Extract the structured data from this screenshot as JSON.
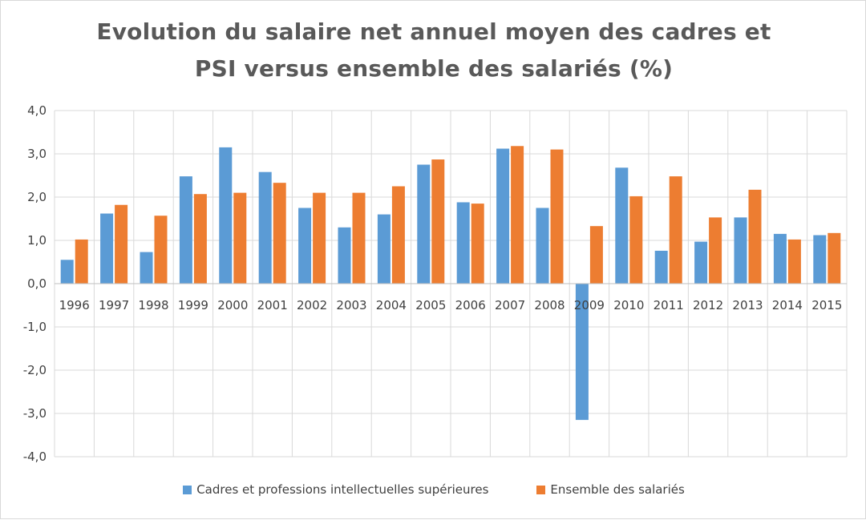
{
  "colors": {
    "series_1": "#5B9BD5",
    "series_2": "#ED7D31",
    "grid": "#d9d9d9",
    "text": "#404040",
    "title": "#595959"
  },
  "chart_data": {
    "type": "bar",
    "title_line1": "Evolution  du salaire  net annuel moyen des cadres et",
    "title_line2": "PSI versus ensemble des salariés (%)",
    "xlabel": "",
    "ylabel": "",
    "ylim": [
      -4.0,
      4.0
    ],
    "y_ticks": [
      "4,0",
      "3,0",
      "2,0",
      "1,0",
      "0,0",
      "-1,0",
      "-2,0",
      "-3,0",
      "-4,0"
    ],
    "grid": true,
    "legend_position": "bottom",
    "categories": [
      "1996",
      "1997",
      "1998",
      "1999",
      "2000",
      "2001",
      "2002",
      "2003",
      "2004",
      "2005",
      "2006",
      "2007",
      "2008",
      "2009",
      "2010",
      "2011",
      "2012",
      "2013",
      "2014",
      "2015"
    ],
    "series": [
      {
        "name": "Cadres et professions intellectuelles supérieures",
        "values": [
          0.55,
          1.62,
          0.73,
          2.48,
          3.15,
          2.58,
          1.75,
          1.3,
          1.6,
          2.75,
          1.88,
          3.12,
          1.75,
          -3.15,
          2.68,
          0.76,
          0.97,
          1.53,
          1.15,
          1.12
        ]
      },
      {
        "name": "Ensemble des salariés",
        "values": [
          1.02,
          1.82,
          1.57,
          2.07,
          2.1,
          2.33,
          2.1,
          2.1,
          2.25,
          2.87,
          1.85,
          3.18,
          3.1,
          1.33,
          2.02,
          2.48,
          1.53,
          2.17,
          1.02,
          1.17
        ]
      }
    ]
  }
}
